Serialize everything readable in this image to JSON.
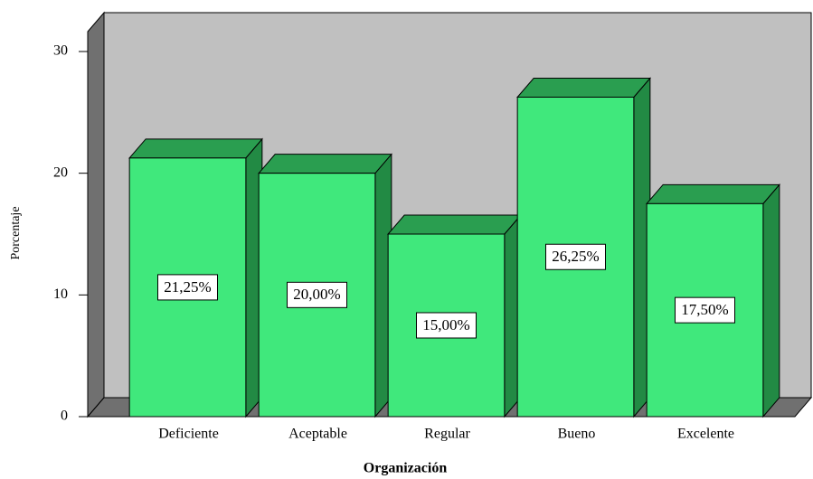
{
  "chart_data": {
    "type": "bar3d",
    "categories": [
      "Deficiente",
      "Aceptable",
      "Regular",
      "Bueno",
      "Excelente"
    ],
    "values": [
      21.25,
      20,
      15,
      26.25,
      17.5
    ],
    "value_labels": [
      "21,25%",
      "20,00%",
      "15,00%",
      "26,25%",
      "17,50%"
    ],
    "color": "#40e87c",
    "ylabel": "Porcentaje",
    "xlabel": "Organización",
    "ylim": [
      0,
      30
    ],
    "yticks": [
      0,
      10,
      20,
      30
    ]
  }
}
